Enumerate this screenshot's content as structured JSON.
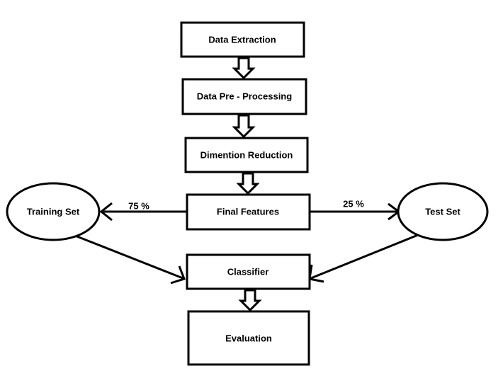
{
  "nodes": {
    "data_extraction": "Data Extraction",
    "data_preprocessing": "Data Pre - Processing",
    "dimension_reduction": "Dimention Reduction",
    "final_features": "Final Features",
    "training_set": "Training Set",
    "test_set": "Test Set",
    "classifier": "Classifier",
    "evaluation": "Evaluation"
  },
  "edge_labels": {
    "training_split": "75 %",
    "test_split": "25 %"
  },
  "colors": {
    "stroke": "#000000",
    "fill": "#ffffff",
    "text": "#000000"
  }
}
